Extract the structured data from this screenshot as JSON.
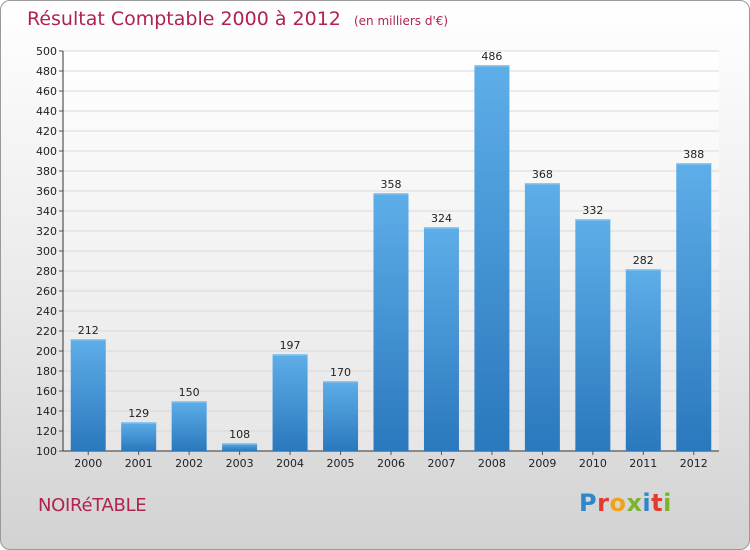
{
  "header": {
    "title": "Résultat Comptable 2000 à 2012",
    "unit": "(en milliers d'€)"
  },
  "footer": {
    "city": "NOIRéTABLE",
    "brand_letters": [
      {
        "ch": "P",
        "color": "#2f86c8"
      },
      {
        "ch": "r",
        "color": "#e23a2f"
      },
      {
        "ch": "o",
        "color": "#f0a21d"
      },
      {
        "ch": "x",
        "color": "#7ab52c"
      },
      {
        "ch": "i",
        "color": "#2f86c8"
      },
      {
        "ch": "t",
        "color": "#e23a2f"
      },
      {
        "ch": "i",
        "color": "#7ab52c"
      }
    ]
  },
  "colors": {
    "title": "#b0234e",
    "bar_top": "#5eaee9",
    "bar_bottom": "#2a78bd",
    "grid": "#d9d9d9"
  },
  "chart_data": {
    "type": "bar",
    "title": "Résultat Comptable 2000 à 2012",
    "subtitle": "(en milliers d'€)",
    "xlabel": "",
    "ylabel": "",
    "ylim": [
      100,
      500
    ],
    "ytick_step": 20,
    "grid": true,
    "categories": [
      "2000",
      "2001",
      "2002",
      "2003",
      "2004",
      "2005",
      "2006",
      "2007",
      "2008",
      "2009",
      "2010",
      "2011",
      "2012"
    ],
    "values": [
      212,
      129,
      150,
      108,
      197,
      170,
      358,
      324,
      486,
      368,
      332,
      282,
      388
    ]
  }
}
